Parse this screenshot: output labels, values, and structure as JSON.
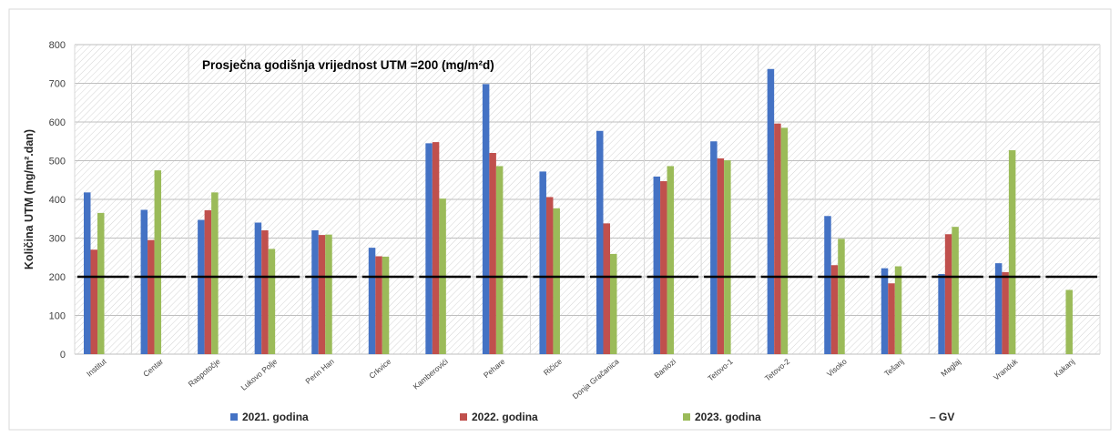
{
  "chart_data": {
    "type": "bar",
    "title": "",
    "annotation": "Prosječna godišnja vrijednost UTM =200 (mg/m²d)",
    "ylabel": "Količina UTM  (mg/m².dan)",
    "xlabel": "",
    "ylim": [
      0,
      800
    ],
    "yticks": [
      0,
      100,
      200,
      300,
      400,
      500,
      600,
      700,
      800
    ],
    "grid": true,
    "legend_position": "bottom",
    "categories": [
      "Institut",
      "Centar",
      "Raspotočje",
      "Lukovo Polje",
      "Perin Han",
      "Crkvice",
      "Kamberovići",
      "Pehare",
      "Ričice",
      "Donja Gračanica",
      "Banlozi",
      "Tetovo-1",
      "Tetovo-2",
      "Visoko",
      "Tešanj",
      "Maglaj",
      "Vranduk",
      "Kakanj"
    ],
    "series": [
      {
        "name": "2021. godina",
        "color": "#4472C4",
        "values": [
          418,
          373,
          347,
          340,
          320,
          275,
          545,
          698,
          472,
          577,
          459,
          550,
          737,
          357,
          222,
          207,
          235,
          null
        ]
      },
      {
        "name": "2022. godina",
        "color": "#C0504D",
        "values": [
          270,
          295,
          372,
          320,
          308,
          253,
          548,
          520,
          406,
          338,
          447,
          506,
          596,
          230,
          183,
          310,
          212,
          null
        ]
      },
      {
        "name": "2023. godina",
        "color": "#9BBB59",
        "values": [
          365,
          475,
          418,
          272,
          309,
          252,
          402,
          486,
          377,
          259,
          486,
          501,
          585,
          298,
          227,
          329,
          527,
          166
        ]
      }
    ],
    "reference_line": {
      "name": "GV",
      "legend_label": "– GV",
      "value": 200,
      "color": "#000000"
    }
  }
}
